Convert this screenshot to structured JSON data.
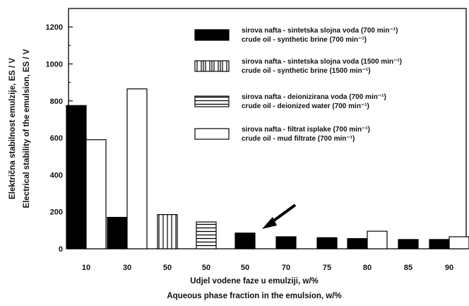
{
  "chart_data": {
    "type": "bar",
    "xlabel_line1": "Udjel vodene faze u emulziji,  w/%",
    "xlabel_line2": "Aqueous phase fraction in the emulsion,  w/%",
    "ylabel_line1": "Električna stabilnost  emulzije,  ES / V",
    "ylabel_line2": "Electrical stability of the emulsion,  ES / V",
    "ylim": [
      0,
      1300
    ],
    "yticks": [
      0,
      200,
      400,
      600,
      800,
      1000,
      1200
    ],
    "categories": [
      "10",
      "30",
      "50",
      "50",
      "50",
      "70",
      "75",
      "80",
      "85",
      "90"
    ],
    "series": [
      {
        "legend_line1": "sirova nafta - sintetska slojna voda (700 min⁻¹)",
        "legend_line2": "crude oil - synthetic brine (700 min⁻¹)",
        "pattern": "solid-black",
        "values": [
          775,
          170,
          null,
          null,
          85,
          65,
          60,
          55,
          50,
          50
        ]
      },
      {
        "legend_line1": "sirova nafta - sintetska slojna voda (1500 min⁻¹)",
        "legend_line2": "crude oil - synthetic brine (1500 min⁻¹)",
        "pattern": "vertical-lines",
        "values": [
          null,
          null,
          185,
          null,
          null,
          null,
          null,
          null,
          null,
          null
        ]
      },
      {
        "legend_line1": "sirova nafta - deionizirana voda (700 min⁻¹)",
        "legend_line2": "crude oil - deionized water (700 min⁻¹)",
        "pattern": "horizontal-lines",
        "values": [
          null,
          null,
          null,
          145,
          null,
          null,
          null,
          null,
          null,
          null
        ]
      },
      {
        "legend_line1": "sirova nafta - filtrat isplake (700 min⁻¹)",
        "legend_line2": "crude oil - mud filtrate (700 min⁻¹)",
        "pattern": "white",
        "values": [
          590,
          865,
          null,
          null,
          null,
          null,
          null,
          95,
          null,
          65
        ]
      }
    ],
    "annotation": "arrow pointing at the 50 w/% crude oil - synthetic brine bar",
    "colors": {
      "bar_fill": "#000000",
      "bar_stroke": "#000000",
      "background": "#ffffff"
    }
  }
}
